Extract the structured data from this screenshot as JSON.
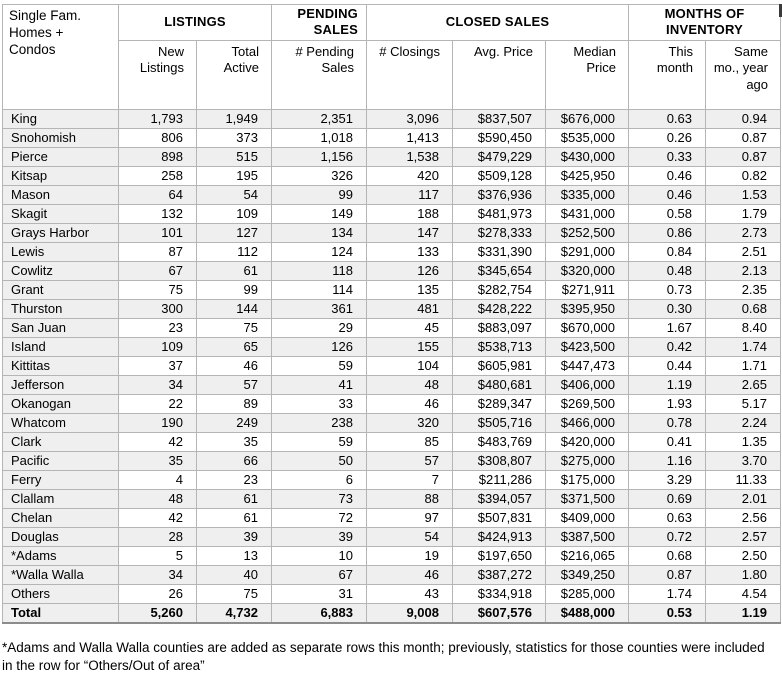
{
  "chart_data": {
    "type": "table",
    "title": "Single Fam. Homes + Condos",
    "column_groups": [
      {
        "label": "LISTINGS",
        "span": 2
      },
      {
        "label": "PENDING SALES",
        "span": 1
      },
      {
        "label": "CLOSED SALES",
        "span": 3
      },
      {
        "label": "MONTHS OF INVENTORY",
        "span": 2
      }
    ],
    "columns": [
      "New Listings",
      "Total Active",
      "# Pending Sales",
      "# Closings",
      "Avg. Price",
      "Median Price",
      "This month",
      "Same mo., year ago"
    ],
    "rows": [
      {
        "county": "King",
        "values": [
          "1,793",
          "1,949",
          "2,351",
          "3,096",
          "$837,507",
          "$676,000",
          "0.63",
          "0.94"
        ]
      },
      {
        "county": "Snohomish",
        "values": [
          "806",
          "373",
          "1,018",
          "1,413",
          "$590,450",
          "$535,000",
          "0.26",
          "0.87"
        ]
      },
      {
        "county": "Pierce",
        "values": [
          "898",
          "515",
          "1,156",
          "1,538",
          "$479,229",
          "$430,000",
          "0.33",
          "0.87"
        ]
      },
      {
        "county": "Kitsap",
        "values": [
          "258",
          "195",
          "326",
          "420",
          "$509,128",
          "$425,950",
          "0.46",
          "0.82"
        ]
      },
      {
        "county": "Mason",
        "values": [
          "64",
          "54",
          "99",
          "117",
          "$376,936",
          "$335,000",
          "0.46",
          "1.53"
        ]
      },
      {
        "county": "Skagit",
        "values": [
          "132",
          "109",
          "149",
          "188",
          "$481,973",
          "$431,000",
          "0.58",
          "1.79"
        ]
      },
      {
        "county": "Grays Harbor",
        "values": [
          "101",
          "127",
          "134",
          "147",
          "$278,333",
          "$252,500",
          "0.86",
          "2.73"
        ]
      },
      {
        "county": "Lewis",
        "values": [
          "87",
          "112",
          "124",
          "133",
          "$331,390",
          "$291,000",
          "0.84",
          "2.51"
        ]
      },
      {
        "county": "Cowlitz",
        "values": [
          "67",
          "61",
          "118",
          "126",
          "$345,654",
          "$320,000",
          "0.48",
          "2.13"
        ]
      },
      {
        "county": "Grant",
        "values": [
          "75",
          "99",
          "114",
          "135",
          "$282,754",
          "$271,911",
          "0.73",
          "2.35"
        ]
      },
      {
        "county": "Thurston",
        "values": [
          "300",
          "144",
          "361",
          "481",
          "$428,222",
          "$395,950",
          "0.30",
          "0.68"
        ]
      },
      {
        "county": "San Juan",
        "values": [
          "23",
          "75",
          "29",
          "45",
          "$883,097",
          "$670,000",
          "1.67",
          "8.40"
        ]
      },
      {
        "county": "Island",
        "values": [
          "109",
          "65",
          "126",
          "155",
          "$538,713",
          "$423,500",
          "0.42",
          "1.74"
        ]
      },
      {
        "county": "Kittitas",
        "values": [
          "37",
          "46",
          "59",
          "104",
          "$605,981",
          "$447,473",
          "0.44",
          "1.71"
        ]
      },
      {
        "county": "Jefferson",
        "values": [
          "34",
          "57",
          "41",
          "48",
          "$480,681",
          "$406,000",
          "1.19",
          "2.65"
        ]
      },
      {
        "county": "Okanogan",
        "values": [
          "22",
          "89",
          "33",
          "46",
          "$289,347",
          "$269,500",
          "1.93",
          "5.17"
        ]
      },
      {
        "county": "Whatcom",
        "values": [
          "190",
          "249",
          "238",
          "320",
          "$505,716",
          "$466,000",
          "0.78",
          "2.24"
        ]
      },
      {
        "county": "Clark",
        "values": [
          "42",
          "35",
          "59",
          "85",
          "$483,769",
          "$420,000",
          "0.41",
          "1.35"
        ]
      },
      {
        "county": "Pacific",
        "values": [
          "35",
          "66",
          "50",
          "57",
          "$308,807",
          "$275,000",
          "1.16",
          "3.70"
        ]
      },
      {
        "county": "Ferry",
        "values": [
          "4",
          "23",
          "6",
          "7",
          "$211,286",
          "$175,000",
          "3.29",
          "11.33"
        ]
      },
      {
        "county": "Clallam",
        "values": [
          "48",
          "61",
          "73",
          "88",
          "$394,057",
          "$371,500",
          "0.69",
          "2.01"
        ]
      },
      {
        "county": "Chelan",
        "values": [
          "42",
          "61",
          "72",
          "97",
          "$507,831",
          "$409,000",
          "0.63",
          "2.56"
        ]
      },
      {
        "county": "Douglas",
        "values": [
          "28",
          "39",
          "39",
          "54",
          "$424,913",
          "$387,500",
          "0.72",
          "2.57"
        ]
      },
      {
        "county": "*Adams",
        "values": [
          "5",
          "13",
          "10",
          "19",
          "$197,650",
          "$216,065",
          "0.68",
          "2.50"
        ]
      },
      {
        "county": "*Walla Walla",
        "values": [
          "34",
          "40",
          "67",
          "46",
          "$387,272",
          "$349,250",
          "0.87",
          "1.80"
        ]
      },
      {
        "county": "Others",
        "values": [
          "26",
          "75",
          "31",
          "43",
          "$334,918",
          "$285,000",
          "1.74",
          "4.54"
        ]
      },
      {
        "county": "Total",
        "values": [
          "5,260",
          "4,732",
          "6,883",
          "9,008",
          "$607,576",
          "$488,000",
          "0.53",
          "1.19"
        ],
        "is_total": true
      }
    ]
  },
  "footnote": "*Adams and Walla Walla counties are added as separate rows this month; previously, statistics for those counties were included in the row for “Others/Out of area”"
}
